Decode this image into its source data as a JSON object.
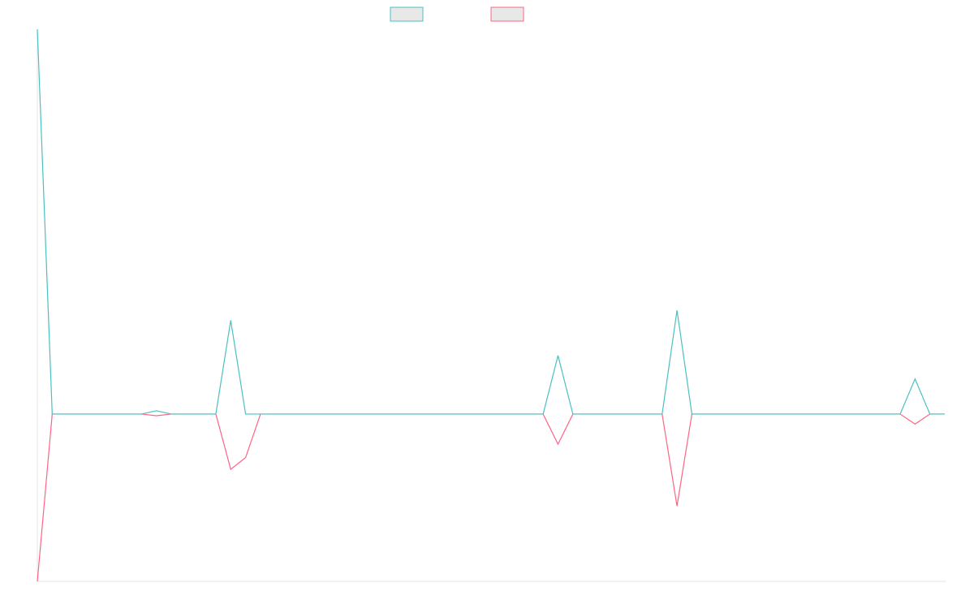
{
  "chart_data": {
    "type": "line",
    "categories": [
      null,
      null,
      null,
      null,
      null,
      null,
      null,
      null,
      null,
      null,
      null,
      null,
      null,
      null,
      null,
      null,
      null,
      null,
      null,
      null,
      null,
      null,
      null,
      null,
      null,
      null,
      null,
      null,
      null,
      null,
      null,
      null,
      null,
      null,
      null,
      null,
      null,
      null,
      null,
      null,
      null,
      null,
      null,
      null,
      null,
      null,
      null,
      null,
      null,
      null,
      null,
      null,
      null,
      null,
      null,
      null,
      null,
      null,
      null,
      null,
      null,
      null
    ],
    "series": [
      {
        "color": "#ff6384",
        "values": [
          -100,
          0,
          0,
          0,
          0,
          0,
          0,
          0,
          -1,
          0,
          0,
          0,
          0,
          -33,
          -26,
          0,
          0,
          0,
          0,
          0,
          0,
          0,
          0,
          0,
          0,
          0,
          0,
          0,
          0,
          0,
          0,
          0,
          0,
          0,
          0,
          -18,
          0,
          0,
          0,
          0,
          0,
          0,
          0,
          -55,
          0,
          0,
          0,
          0,
          0,
          0,
          0,
          0,
          0,
          0,
          0,
          0,
          0,
          0,
          0,
          -6,
          0,
          0
        ]
      },
      {
        "color": "#4bc0c0",
        "values": [
          230,
          0,
          0,
          0,
          0,
          0,
          0,
          0,
          2,
          0,
          0,
          0,
          0,
          56,
          0,
          0,
          0,
          0,
          0,
          0,
          0,
          0,
          0,
          0,
          0,
          0,
          0,
          0,
          0,
          0,
          0,
          0,
          0,
          0,
          0,
          35,
          0,
          0,
          0,
          0,
          0,
          0,
          0,
          62,
          0,
          0,
          0,
          0,
          0,
          0,
          0,
          0,
          0,
          0,
          0,
          0,
          0,
          0,
          0,
          21,
          0,
          0
        ]
      }
    ],
    "legend_order": [
      1,
      0
    ],
    "ylim": [
      -100,
      230
    ]
  }
}
